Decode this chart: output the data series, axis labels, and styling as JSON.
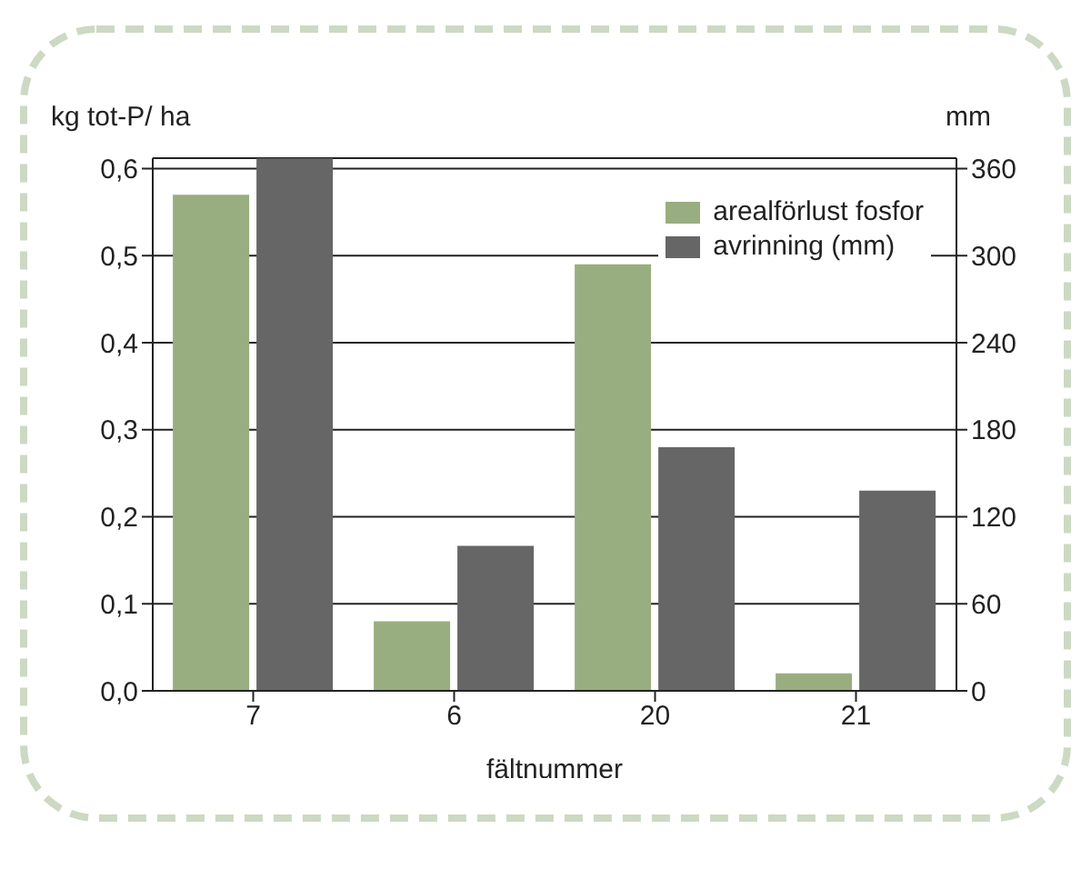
{
  "chart_data": {
    "type": "bar",
    "ylabel": "kg tot-P/ ha",
    "y2label": "mm",
    "xlabel": "fältnummer",
    "categories": [
      "7",
      "6",
      "20",
      "21"
    ],
    "series": [
      {
        "name": "arealförlust fosfor",
        "color": "#99ae80",
        "values": [
          0.57,
          0.08,
          0.49,
          0.02
        ]
      },
      {
        "name": "avrinning (mm)",
        "color": "#666666",
        "values": [
          367,
          100,
          168,
          138
        ],
        "axis": "y2"
      }
    ],
    "ylim": [
      0,
      0.612
    ],
    "yticks": [
      {
        "value": 0,
        "label": "0,0"
      },
      {
        "value": 0.1,
        "label": "0,1"
      },
      {
        "value": 0.2,
        "label": "0,2"
      },
      {
        "value": 0.3,
        "label": "0,3"
      },
      {
        "value": 0.4,
        "label": "0,4"
      },
      {
        "value": 0.5,
        "label": "0,5"
      },
      {
        "value": 0.6,
        "label": "0,6"
      }
    ],
    "y2lim": [
      0,
      367.2
    ],
    "y2ticks": [
      0,
      60,
      120,
      180,
      240,
      300,
      360
    ],
    "grid": "y",
    "legend": "top right"
  }
}
